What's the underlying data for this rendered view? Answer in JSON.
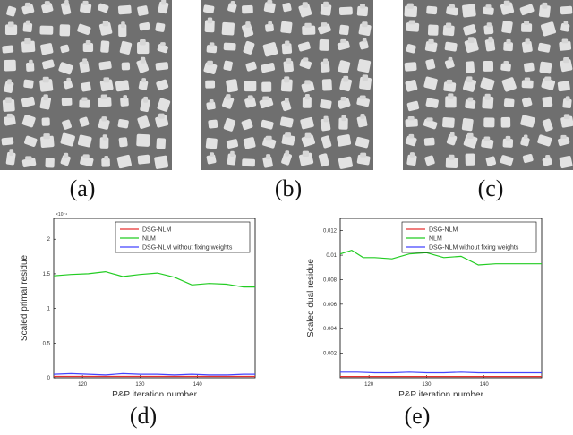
{
  "images": [
    {
      "caption": "(a)"
    },
    {
      "caption": "(b)"
    },
    {
      "caption": "(c)"
    }
  ],
  "chart_data": [
    {
      "type": "line",
      "caption": "(d)",
      "xlabel": "P&P iteration number",
      "ylabel": "Scaled primal residue",
      "scale_label": "×10⁻⁴",
      "xlim": [
        115,
        150
      ],
      "ylim": [
        0,
        2.3
      ],
      "xticks": [
        120,
        130,
        140
      ],
      "xtick_labels": [
        "120",
        "130",
        "140"
      ],
      "yticks": [
        0,
        0.5,
        1,
        1.5,
        2
      ],
      "ytick_labels": [
        "0",
        "0.5",
        "1",
        "1.5",
        "2"
      ],
      "legend_position": "top-right",
      "series": [
        {
          "name": "DSG-NLM",
          "color": "#e83030",
          "x": [
            115,
            118,
            121,
            124,
            127,
            130,
            133,
            136,
            139,
            142,
            145,
            148,
            150
          ],
          "y": [
            0.02,
            0.02,
            0.02,
            0.02,
            0.02,
            0.02,
            0.02,
            0.02,
            0.02,
            0.02,
            0.02,
            0.02,
            0.02
          ]
        },
        {
          "name": "NLM",
          "color": "#22cc22",
          "x": [
            115,
            118,
            121,
            124,
            127,
            130,
            133,
            136,
            139,
            142,
            145,
            148,
            150
          ],
          "y": [
            1.47,
            1.49,
            1.5,
            1.53,
            1.46,
            1.49,
            1.51,
            1.45,
            1.34,
            1.36,
            1.35,
            1.31,
            1.31
          ]
        },
        {
          "name": "DSG-NLM without fixing weights",
          "color": "#4444ff",
          "x": [
            115,
            118,
            121,
            124,
            127,
            130,
            133,
            136,
            139,
            142,
            145,
            148,
            150
          ],
          "y": [
            0.05,
            0.06,
            0.05,
            0.04,
            0.06,
            0.05,
            0.05,
            0.04,
            0.05,
            0.04,
            0.04,
            0.05,
            0.05
          ]
        }
      ]
    },
    {
      "type": "line",
      "caption": "(e)",
      "xlabel": "P&P iteration number",
      "ylabel": "Scaled dual residue",
      "xlim": [
        115,
        150
      ],
      "ylim": [
        0,
        0.013
      ],
      "xticks": [
        120,
        130,
        140
      ],
      "xtick_labels": [
        "120",
        "130",
        "140"
      ],
      "yticks": [
        0.002,
        0.004,
        0.006,
        0.008,
        0.01,
        0.012
      ],
      "ytick_labels": [
        "0.002",
        "0.004",
        "0.006",
        "0.008",
        "0.01",
        "0.012"
      ],
      "legend_position": "top-right",
      "series": [
        {
          "name": "DSG-NLM",
          "color": "#e83030",
          "x": [
            115,
            118,
            121,
            124,
            127,
            130,
            133,
            136,
            139,
            142,
            145,
            148,
            150
          ],
          "y": [
            0.0001,
            0.0001,
            0.0001,
            0.0001,
            0.0001,
            0.0001,
            0.0001,
            0.0001,
            0.0001,
            0.0001,
            0.0001,
            0.0001,
            0.0001
          ]
        },
        {
          "name": "NLM",
          "color": "#22cc22",
          "x": [
            115,
            117,
            119,
            121,
            124,
            127,
            130,
            133,
            136,
            139,
            142,
            145,
            150
          ],
          "y": [
            0.0101,
            0.0104,
            0.0098,
            0.0098,
            0.0097,
            0.0101,
            0.0102,
            0.0098,
            0.0099,
            0.0092,
            0.0093,
            0.0093,
            0.0093
          ]
        },
        {
          "name": "DSG-NLM without fixing weights",
          "color": "#4444ff",
          "x": [
            115,
            118,
            121,
            124,
            127,
            130,
            133,
            136,
            139,
            142,
            145,
            148,
            150
          ],
          "y": [
            0.00045,
            0.00045,
            0.0004,
            0.0004,
            0.00045,
            0.0004,
            0.0004,
            0.00045,
            0.0004,
            0.0004,
            0.0004,
            0.0004,
            0.0004
          ]
        }
      ]
    }
  ]
}
